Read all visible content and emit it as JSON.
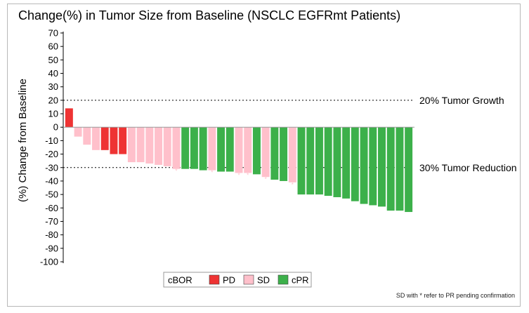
{
  "footnote": "SD with * refer to PR pending confirmation",
  "colors": {
    "PD": "#ee3333",
    "SD": "#ffc0cb",
    "cPR": "#3cb04a"
  },
  "chart_data": {
    "type": "bar",
    "title": "Change(%) in Tumor Size from Baseline (NSCLC EGFRmt Patients)",
    "ylabel": "(%) Change from Baseline",
    "xlabel": "",
    "ylim": [
      -100,
      70
    ],
    "yticks": [
      70,
      60,
      50,
      40,
      30,
      20,
      10,
      0,
      -10,
      -20,
      -30,
      -40,
      -50,
      -60,
      -70,
      -80,
      -90,
      -100
    ],
    "grid": false,
    "legend": {
      "title": "cBOR",
      "entries": [
        "PD",
        "SD",
        "cPR"
      ],
      "position": "bottom-center"
    },
    "reference_lines": [
      {
        "y": 20,
        "label": "20% Tumor Growth"
      },
      {
        "y": -30,
        "label": "30% Tumor Reduction"
      }
    ],
    "bars": [
      {
        "value": 14,
        "group": "PD",
        "star": false
      },
      {
        "value": -7,
        "group": "SD",
        "star": false
      },
      {
        "value": -13,
        "group": "SD",
        "star": false
      },
      {
        "value": -17,
        "group": "SD",
        "star": false
      },
      {
        "value": -17,
        "group": "PD",
        "star": false
      },
      {
        "value": -20,
        "group": "PD",
        "star": false
      },
      {
        "value": -20,
        "group": "PD",
        "star": false
      },
      {
        "value": -26,
        "group": "SD",
        "star": false
      },
      {
        "value": -26,
        "group": "SD",
        "star": false
      },
      {
        "value": -27,
        "group": "SD",
        "star": false
      },
      {
        "value": -28,
        "group": "SD",
        "star": false
      },
      {
        "value": -29,
        "group": "SD",
        "star": false
      },
      {
        "value": -31,
        "group": "SD",
        "star": true
      },
      {
        "value": -31,
        "group": "cPR",
        "star": false
      },
      {
        "value": -31,
        "group": "cPR",
        "star": false
      },
      {
        "value": -32,
        "group": "cPR",
        "star": false
      },
      {
        "value": -32,
        "group": "SD",
        "star": true
      },
      {
        "value": -33,
        "group": "cPR",
        "star": false
      },
      {
        "value": -33,
        "group": "cPR",
        "star": false
      },
      {
        "value": -34,
        "group": "SD",
        "star": true
      },
      {
        "value": -34,
        "group": "SD",
        "star": true
      },
      {
        "value": -35,
        "group": "cPR",
        "star": false
      },
      {
        "value": -37,
        "group": "SD",
        "star": true
      },
      {
        "value": -39,
        "group": "cPR",
        "star": false
      },
      {
        "value": -40,
        "group": "cPR",
        "star": false
      },
      {
        "value": -41,
        "group": "SD",
        "star": true
      },
      {
        "value": -50,
        "group": "cPR",
        "star": false
      },
      {
        "value": -50,
        "group": "cPR",
        "star": false
      },
      {
        "value": -50,
        "group": "cPR",
        "star": false
      },
      {
        "value": -51,
        "group": "cPR",
        "star": false
      },
      {
        "value": -52,
        "group": "cPR",
        "star": false
      },
      {
        "value": -53,
        "group": "cPR",
        "star": false
      },
      {
        "value": -55,
        "group": "cPR",
        "star": false
      },
      {
        "value": -57,
        "group": "cPR",
        "star": false
      },
      {
        "value": -58,
        "group": "cPR",
        "star": false
      },
      {
        "value": -59,
        "group": "cPR",
        "star": false
      },
      {
        "value": -62,
        "group": "cPR",
        "star": false
      },
      {
        "value": -62,
        "group": "cPR",
        "star": false
      },
      {
        "value": -63,
        "group": "cPR",
        "star": false
      }
    ]
  }
}
